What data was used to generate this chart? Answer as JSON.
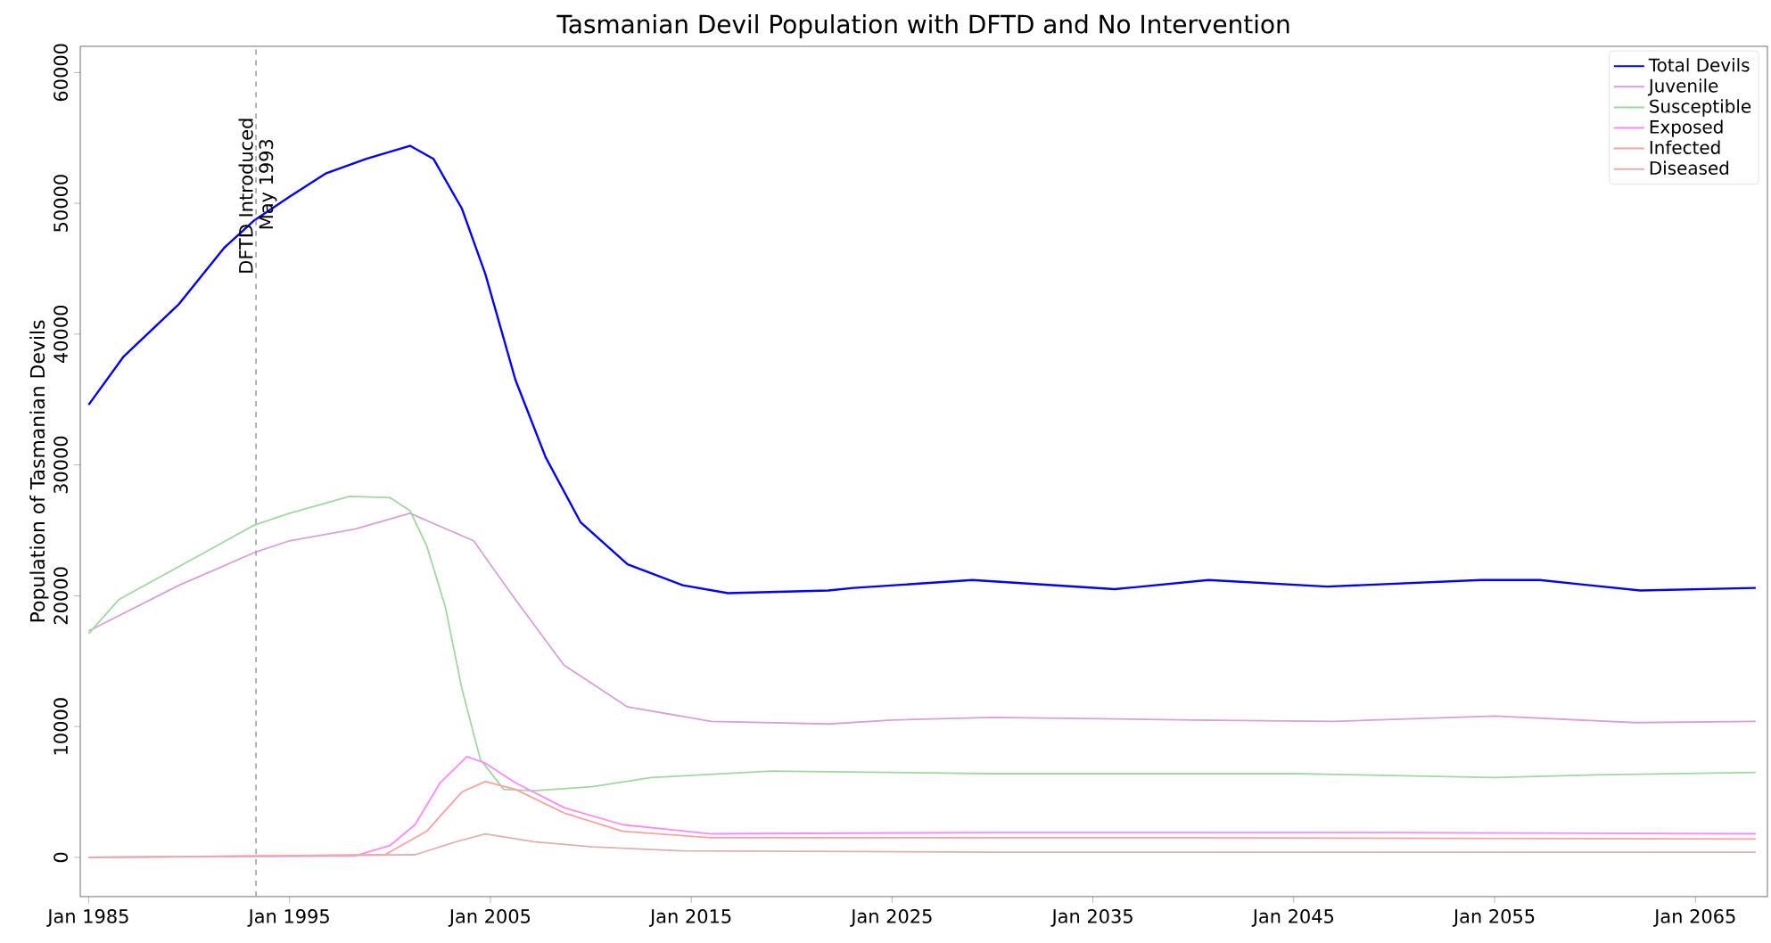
{
  "chart_data": {
    "type": "line",
    "title": "Tasmanian Devil Population with DFTD and No Intervention",
    "ylabel": "Population of Tasmanian Devils",
    "xlim": [
      "1984-08",
      "2068-08"
    ],
    "ylim": [
      -3000,
      62000
    ],
    "xticks": [
      {
        "value": "1985-01",
        "label": "Jan 1985"
      },
      {
        "value": "1995-01",
        "label": "Jan 1995"
      },
      {
        "value": "2005-01",
        "label": "Jan 2005"
      },
      {
        "value": "2015-01",
        "label": "Jan 2015"
      },
      {
        "value": "2025-01",
        "label": "Jan 2025"
      },
      {
        "value": "2035-01",
        "label": "Jan 2035"
      },
      {
        "value": "2045-01",
        "label": "Jan 2045"
      },
      {
        "value": "2055-01",
        "label": "Jan 2055"
      },
      {
        "value": "2065-01",
        "label": "Jan 2065"
      }
    ],
    "yticks": [
      0,
      10000,
      20000,
      30000,
      40000,
      50000,
      60000
    ],
    "grid": false,
    "legend": "top right",
    "marker": "none",
    "line_style": "solid",
    "ref_lines": [
      {
        "axis": "x",
        "value": "1993-05",
        "label": "DFTD Introduced",
        "color": "#a0a0a0",
        "line_style": "dashed"
      }
    ],
    "annotations": [
      {
        "text": "May 1993",
        "x": "1993-05",
        "y": 55200
      }
    ],
    "series": [
      {
        "name": "Total Devils",
        "color": "#0000ff",
        "x": [
          "1985-01",
          "1986-10",
          "1989-07",
          "1991-10",
          "1993-04",
          "1995-01",
          "1996-11",
          "1998-11",
          "2001-01",
          "2002-03",
          "2003-08",
          "2004-10",
          "2006-04",
          "2007-10",
          "2009-07",
          "2011-11",
          "2014-08",
          "2016-11",
          "2021-11",
          "2023-02",
          "2029-01",
          "2036-02",
          "2040-10",
          "2046-09",
          "2054-05",
          "2057-04",
          "2062-04",
          "2068-01"
        ],
        "values": [
          34600,
          38300,
          42300,
          46600,
          48700,
          50500,
          52300,
          53400,
          54400,
          53400,
          49600,
          44600,
          36500,
          30600,
          25600,
          22400,
          20800,
          20200,
          20400,
          20600,
          21200,
          20500,
          21200,
          20700,
          21200,
          21200,
          20400,
          20600
        ]
      },
      {
        "name": "Juvenile",
        "color": "#d8a0d8",
        "x": [
          "1985-01",
          "1989-07",
          "1993-04",
          "1995-01",
          "1998-04",
          "2001-01",
          "2004-03",
          "2006-04",
          "2008-09",
          "2011-11",
          "2016-01",
          "2021-11",
          "2025-01",
          "2030-01",
          "2040-01",
          "2047-01",
          "2055-01",
          "2062-01",
          "2068-01"
        ],
        "values": [
          17300,
          20800,
          23300,
          24200,
          25100,
          26300,
          24200,
          19700,
          14700,
          11500,
          10400,
          10200,
          10500,
          10700,
          10500,
          10400,
          10800,
          10300,
          10400
        ]
      },
      {
        "name": "Susceptible",
        "color": "#a0d8a0",
        "x": [
          "1985-01",
          "1986-07",
          "1993-04",
          "1995-01",
          "1998-01",
          "2000-01",
          "2001-01",
          "2001-11",
          "2002-10",
          "2003-08",
          "2004-07",
          "2005-09",
          "2007-03",
          "2010-02",
          "2013-01",
          "2019-01",
          "2030-01",
          "2045-01",
          "2055-01",
          "2060-01",
          "2068-01"
        ],
        "values": [
          17100,
          19700,
          25400,
          26300,
          27600,
          27500,
          26500,
          23800,
          19200,
          12900,
          7500,
          5200,
          5100,
          5400,
          6100,
          6600,
          6400,
          6400,
          6100,
          6300,
          6500
        ]
      },
      {
        "name": "Exposed",
        "color": "#ff88ff",
        "x": [
          "1985-01",
          "1998-04",
          "2000-01",
          "2001-04",
          "2002-07",
          "2003-11",
          "2004-10",
          "2006-04",
          "2008-09",
          "2011-08",
          "2016-01",
          "2030-01",
          "2050-01",
          "2068-01"
        ],
        "values": [
          0,
          100,
          900,
          2500,
          5700,
          7700,
          7200,
          5700,
          3800,
          2500,
          1800,
          1900,
          1900,
          1800
        ]
      },
      {
        "name": "Infected",
        "color": "#ffa0a0",
        "x": [
          "1985-01",
          "1999-10",
          "2001-11",
          "2003-08",
          "2004-10",
          "2006-04",
          "2008-09",
          "2011-08",
          "2016-01",
          "2040-01",
          "2068-01"
        ],
        "values": [
          0,
          200,
          2000,
          5000,
          5800,
          5200,
          3400,
          2000,
          1500,
          1500,
          1400
        ]
      },
      {
        "name": "Diseased",
        "color": "#e0b0b0",
        "x": [
          "1985-01",
          "2001-04",
          "2003-02",
          "2004-10",
          "2007-03",
          "2010-02",
          "2014-08",
          "2030-01",
          "2068-01"
        ],
        "values": [
          0,
          200,
          1100,
          1800,
          1200,
          800,
          500,
          400,
          400
        ]
      }
    ]
  }
}
